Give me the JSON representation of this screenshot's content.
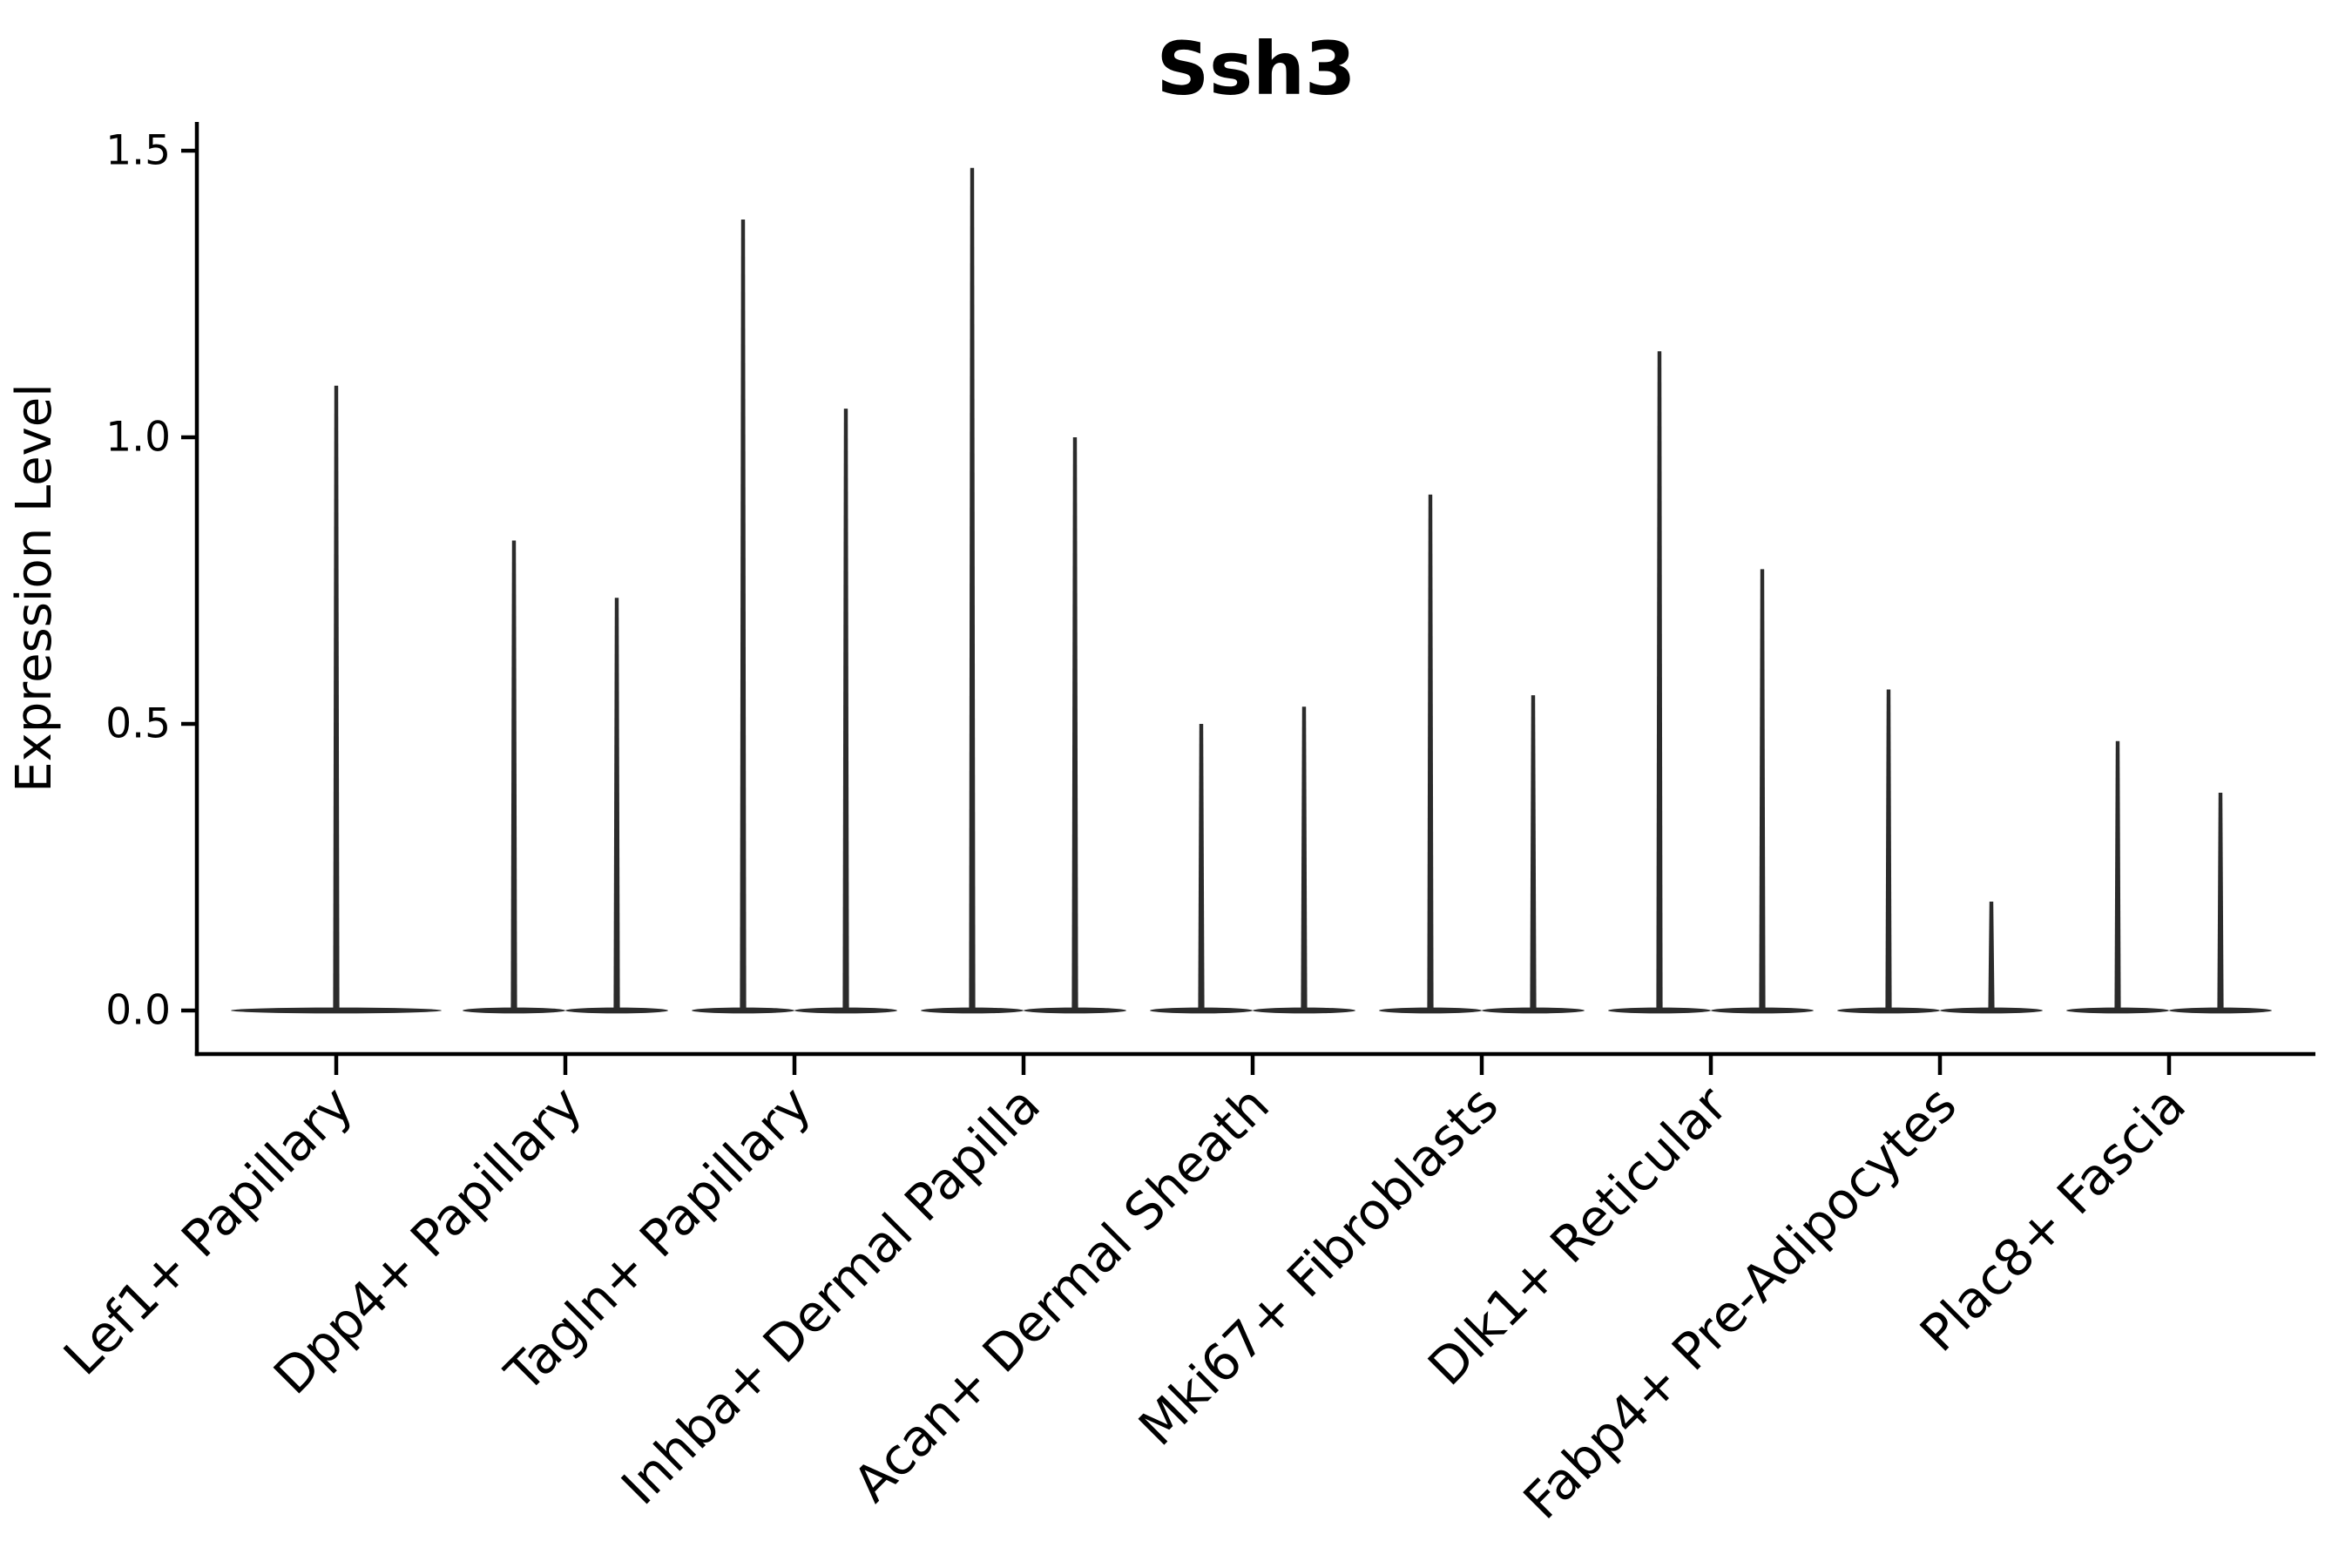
{
  "title": "Ssh3",
  "axes": {
    "ylabel": "Expression Level",
    "xlabel": ""
  },
  "chart_data": {
    "type": "violin",
    "title": "Ssh3",
    "xlabel": "",
    "ylabel": "Expression Level",
    "ylim": [
      -0.08,
      1.55
    ],
    "yticks": [
      0.0,
      0.5,
      1.0,
      1.5
    ],
    "ytick_labels": [
      "0.0",
      "0.5",
      "1.0",
      "1.5"
    ],
    "grid": false,
    "legend": "none",
    "categories": [
      "Lef1+ Papillary",
      "Dpp4+ Papillary",
      "Tagln+ Papillary",
      "Inhba+ Dermal Papilla",
      "Acan+ Dermal Sheath",
      "Mki67+ Fibroblasts",
      "Dlk1+ Reticular",
      "Fabp4+ Pre-Adipocytes",
      "Plac8+ Fascia"
    ],
    "violins": [
      {
        "category": "Lef1+ Papillary",
        "split": false,
        "max_values": [
          1.09
        ]
      },
      {
        "category": "Dpp4+ Papillary",
        "split": true,
        "max_values": [
          0.82,
          0.72
        ]
      },
      {
        "category": "Tagln+ Papillary",
        "split": true,
        "max_values": [
          1.38,
          1.05
        ]
      },
      {
        "category": "Inhba+ Dermal Papilla",
        "split": true,
        "max_values": [
          1.47,
          1.0
        ]
      },
      {
        "category": "Acan+ Dermal Sheath",
        "split": true,
        "max_values": [
          0.5,
          0.53
        ]
      },
      {
        "category": "Mki67+ Fibroblasts",
        "split": true,
        "max_values": [
          0.9,
          0.55
        ]
      },
      {
        "category": "Dlk1+ Reticular",
        "split": true,
        "max_values": [
          1.15,
          0.77
        ]
      },
      {
        "category": "Fabp4+ Pre-Adipocytes",
        "split": true,
        "max_values": [
          0.56,
          0.19
        ]
      },
      {
        "category": "Plac8+ Fascia",
        "split": true,
        "max_values": [
          0.47,
          0.38
        ]
      }
    ],
    "shape_note": "each violin is collapsed flat at 0 with a thin needle rising to its max value"
  },
  "colors": {
    "violin": "#2b2b2b",
    "axis": "#000000",
    "text": "#000000",
    "background": "#ffffff"
  }
}
